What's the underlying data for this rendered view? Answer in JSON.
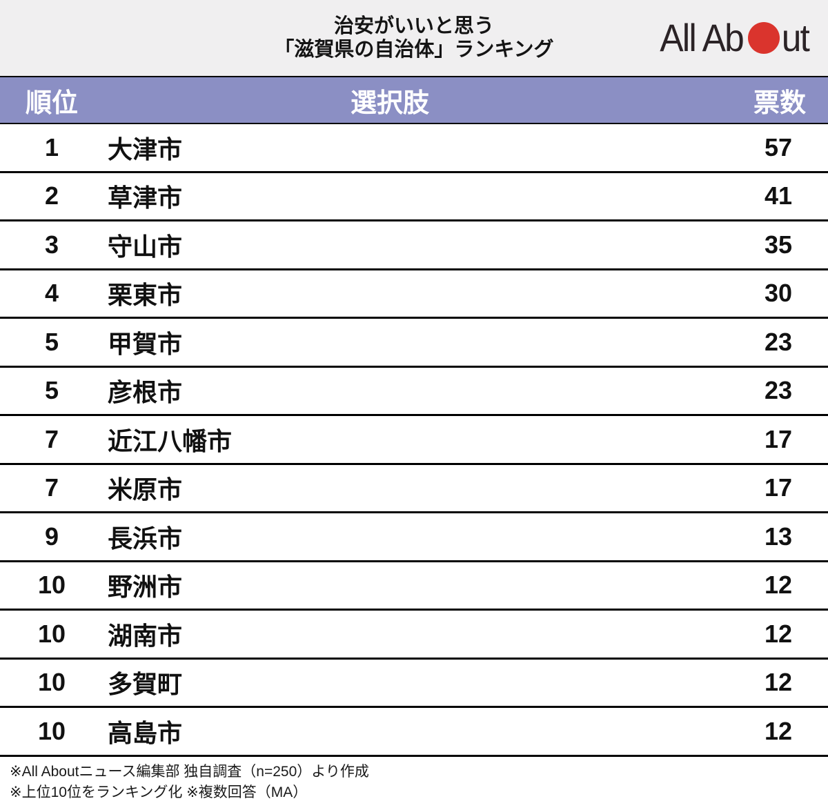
{
  "header": {
    "title_line1": "治安がいいと思う",
    "title_line2": "「滋賀県の自治体」ランキング",
    "logo": {
      "text_before_circle": "All Ab",
      "text_after_circle": "ut",
      "circle_color": "#da342d",
      "text_color": "#2b2326"
    }
  },
  "table": {
    "columns": {
      "rank": "順位",
      "choice": "選択肢",
      "votes": "票数"
    },
    "rows": [
      {
        "rank": "1",
        "choice": "大津市",
        "votes": "57"
      },
      {
        "rank": "2",
        "choice": "草津市",
        "votes": "41"
      },
      {
        "rank": "3",
        "choice": "守山市",
        "votes": "35"
      },
      {
        "rank": "4",
        "choice": "栗東市",
        "votes": "30"
      },
      {
        "rank": "5",
        "choice": "甲賀市",
        "votes": "23"
      },
      {
        "rank": "5",
        "choice": "彦根市",
        "votes": "23"
      },
      {
        "rank": "7",
        "choice": "近江八幡市",
        "votes": "17"
      },
      {
        "rank": "7",
        "choice": "米原市",
        "votes": "17"
      },
      {
        "rank": "9",
        "choice": "長浜市",
        "votes": "13"
      },
      {
        "rank": "10",
        "choice": "野洲市",
        "votes": "12"
      },
      {
        "rank": "10",
        "choice": "湖南市",
        "votes": "12"
      },
      {
        "rank": "10",
        "choice": "多賀町",
        "votes": "12"
      },
      {
        "rank": "10",
        "choice": "高島市",
        "votes": "12"
      }
    ]
  },
  "footer": {
    "note1": "※All Aboutニュース編集部 独自調査（n=250）より作成",
    "note2": "※上位10位をランキング化 ※複数回答（MA）"
  },
  "colors": {
    "title_area_bg": "#f0eff0",
    "header_row_bg": "#8b8fc4",
    "header_row_text": "#ffffff",
    "row_bg": "#ffffff",
    "divider": "#000000",
    "logo_red": "#da342d"
  },
  "chart_data": {
    "type": "table",
    "title": "治安がいいと思う「滋賀県の自治体」ランキング",
    "columns": [
      "順位",
      "選択肢",
      "票数"
    ],
    "rows": [
      [
        1,
        "大津市",
        57
      ],
      [
        2,
        "草津市",
        41
      ],
      [
        3,
        "守山市",
        35
      ],
      [
        4,
        "栗東市",
        30
      ],
      [
        5,
        "甲賀市",
        23
      ],
      [
        5,
        "彦根市",
        23
      ],
      [
        7,
        "近江八幡市",
        17
      ],
      [
        7,
        "米原市",
        17
      ],
      [
        9,
        "長浜市",
        13
      ],
      [
        10,
        "野洲市",
        12
      ],
      [
        10,
        "湖南市",
        12
      ],
      [
        10,
        "多賀町",
        12
      ],
      [
        10,
        "高島市",
        12
      ]
    ],
    "notes": [
      "※All Aboutニュース編集部 独自調査（n=250）より作成",
      "※上位10位をランキング化 ※複数回答（MA）"
    ],
    "source": "All About"
  }
}
